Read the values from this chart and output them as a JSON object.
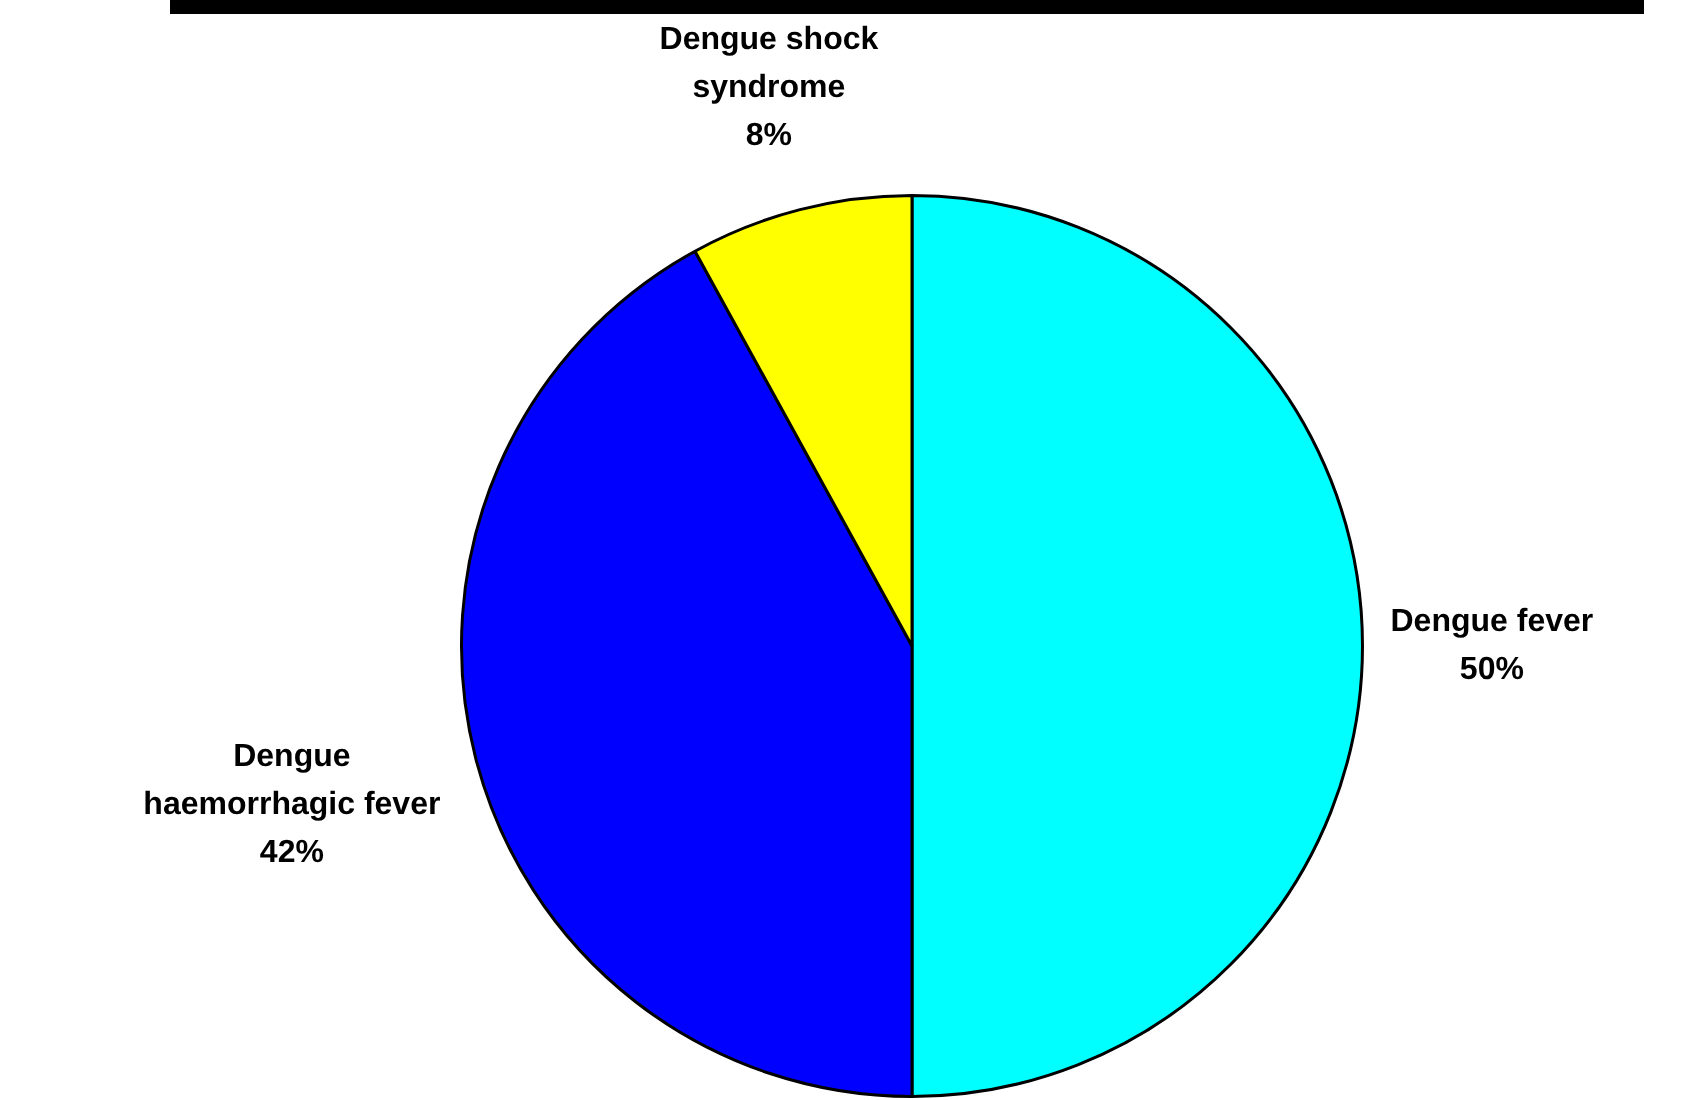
{
  "chart_data": {
    "type": "pie",
    "categories": [
      "Dengue fever",
      "Dengue haemorrhagic fever",
      "Dengue shock syndrome"
    ],
    "values": [
      50,
      42,
      8
    ],
    "colors": [
      "#00ffff",
      "#0000ff",
      "#ffff00"
    ],
    "value_labels": [
      "50%",
      "42%",
      "8%"
    ],
    "legend": false
  }
}
